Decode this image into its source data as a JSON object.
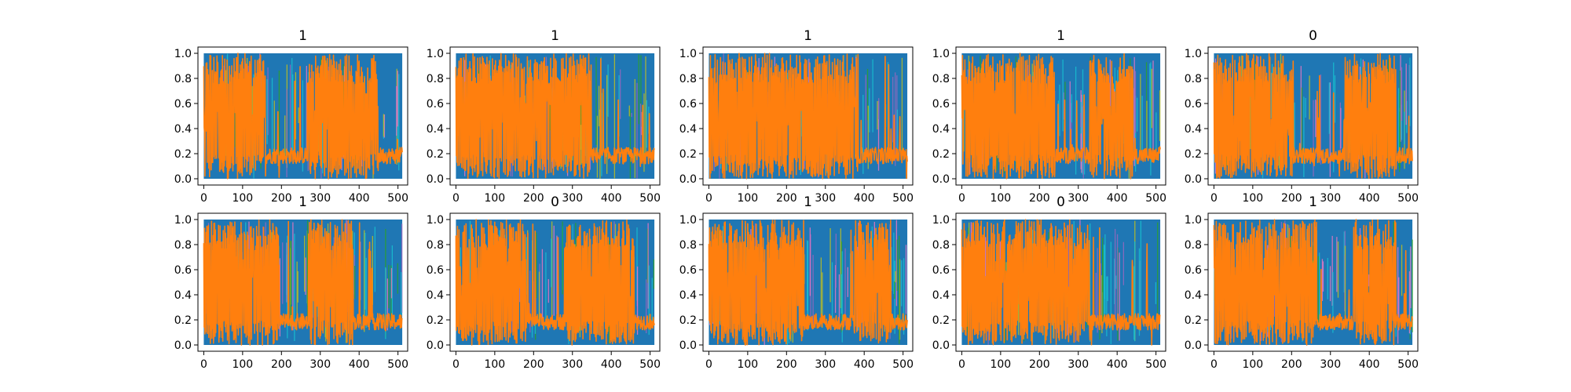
{
  "chart_data": {
    "type": "line",
    "grid": false,
    "layout": {
      "rows": 2,
      "cols": 5
    },
    "colors": {
      "blue": "#1f77b4",
      "orange": "#ff7f0e",
      "cyan": "#17becf",
      "green": "#2ca02c",
      "olive": "#bcbd22",
      "pink": "#e377c2",
      "purple": "#9467bd"
    },
    "panels": [
      {
        "title": "1",
        "xlim": [
          -15,
          525
        ],
        "ylim": [
          -0.05,
          1.05
        ],
        "xticks": [
          0,
          100,
          200,
          300,
          400,
          500
        ],
        "yticks": [
          "0.0",
          "0.2",
          "0.4",
          "0.6",
          "0.8",
          "1.0"
        ],
        "segments": [
          {
            "start": 0,
            "end": 160,
            "regime": "high"
          },
          {
            "start": 160,
            "end": 270,
            "regime": "low"
          },
          {
            "start": 270,
            "end": 450,
            "regime": "high"
          },
          {
            "start": 450,
            "end": 511,
            "regime": "low"
          }
        ]
      },
      {
        "title": "1",
        "xlim": [
          -15,
          525
        ],
        "ylim": [
          -0.05,
          1.05
        ],
        "xticks": [
          0,
          100,
          200,
          300,
          400,
          500
        ],
        "yticks": [
          "0.0",
          "0.2",
          "0.4",
          "0.6",
          "0.8",
          "1.0"
        ],
        "segments": [
          {
            "start": 0,
            "end": 345,
            "regime": "high"
          },
          {
            "start": 345,
            "end": 511,
            "regime": "low"
          }
        ]
      },
      {
        "title": "1",
        "xlim": [
          -15,
          525
        ],
        "ylim": [
          -0.05,
          1.05
        ],
        "xticks": [
          0,
          100,
          200,
          300,
          400,
          500
        ],
        "yticks": [
          "0.0",
          "0.2",
          "0.4",
          "0.6",
          "0.8",
          "1.0"
        ],
        "segments": [
          {
            "start": 0,
            "end": 385,
            "regime": "high"
          },
          {
            "start": 385,
            "end": 511,
            "regime": "low"
          }
        ]
      },
      {
        "title": "1",
        "xlim": [
          -15,
          525
        ],
        "ylim": [
          -0.05,
          1.05
        ],
        "xticks": [
          0,
          100,
          200,
          300,
          400,
          500
        ],
        "yticks": [
          "0.0",
          "0.2",
          "0.4",
          "0.6",
          "0.8",
          "1.0"
        ],
        "segments": [
          {
            "start": 0,
            "end": 240,
            "regime": "high"
          },
          {
            "start": 240,
            "end": 330,
            "regime": "low"
          },
          {
            "start": 330,
            "end": 440,
            "regime": "high"
          },
          {
            "start": 440,
            "end": 511,
            "regime": "low"
          }
        ]
      },
      {
        "title": "0",
        "xlim": [
          -15,
          525
        ],
        "ylim": [
          -0.05,
          1.05
        ],
        "xticks": [
          0,
          100,
          200,
          300,
          400,
          500
        ],
        "yticks": [
          "0.0",
          "0.2",
          "0.4",
          "0.6",
          "0.8",
          "1.0"
        ],
        "segments": [
          {
            "start": 0,
            "end": 205,
            "regime": "high"
          },
          {
            "start": 205,
            "end": 335,
            "regime": "low"
          },
          {
            "start": 335,
            "end": 470,
            "regime": "high"
          },
          {
            "start": 470,
            "end": 511,
            "regime": "low"
          }
        ]
      },
      {
        "title": "1",
        "xlim": [
          -15,
          525
        ],
        "ylim": [
          -0.05,
          1.05
        ],
        "xticks": [
          0,
          100,
          200,
          300,
          400,
          500
        ],
        "yticks": [
          "0.0",
          "0.2",
          "0.4",
          "0.6",
          "0.8",
          "1.0"
        ],
        "segments": [
          {
            "start": 0,
            "end": 195,
            "regime": "high"
          },
          {
            "start": 195,
            "end": 270,
            "regime": "low"
          },
          {
            "start": 270,
            "end": 385,
            "regime": "high"
          },
          {
            "start": 385,
            "end": 511,
            "regime": "low"
          }
        ]
      },
      {
        "title": "0",
        "xlim": [
          -15,
          525
        ],
        "ylim": [
          -0.05,
          1.05
        ],
        "xticks": [
          0,
          100,
          200,
          300,
          400,
          500
        ],
        "yticks": [
          "0.0",
          "0.2",
          "0.4",
          "0.6",
          "0.8",
          "1.0"
        ],
        "segments": [
          {
            "start": 0,
            "end": 180,
            "regime": "high"
          },
          {
            "start": 180,
            "end": 280,
            "regime": "low"
          },
          {
            "start": 280,
            "end": 460,
            "regime": "high"
          },
          {
            "start": 460,
            "end": 511,
            "regime": "low"
          }
        ]
      },
      {
        "title": "1",
        "xlim": [
          -15,
          525
        ],
        "ylim": [
          -0.05,
          1.05
        ],
        "xticks": [
          0,
          100,
          200,
          300,
          400,
          500
        ],
        "yticks": [
          "0.0",
          "0.2",
          "0.4",
          "0.6",
          "0.8",
          "1.0"
        ],
        "segments": [
          {
            "start": 0,
            "end": 245,
            "regime": "high"
          },
          {
            "start": 245,
            "end": 375,
            "regime": "low"
          },
          {
            "start": 375,
            "end": 470,
            "regime": "high"
          },
          {
            "start": 470,
            "end": 511,
            "regime": "low"
          }
        ]
      },
      {
        "title": "0",
        "xlim": [
          -15,
          525
        ],
        "ylim": [
          -0.05,
          1.05
        ],
        "xticks": [
          0,
          100,
          200,
          300,
          400,
          500
        ],
        "yticks": [
          "0.0",
          "0.2",
          "0.4",
          "0.6",
          "0.8",
          "1.0"
        ],
        "segments": [
          {
            "start": 0,
            "end": 330,
            "regime": "high"
          },
          {
            "start": 330,
            "end": 511,
            "regime": "low"
          }
        ]
      },
      {
        "title": "1",
        "xlim": [
          -15,
          525
        ],
        "ylim": [
          -0.05,
          1.05
        ],
        "xticks": [
          0,
          100,
          200,
          300,
          400,
          500
        ],
        "yticks": [
          "0.0",
          "0.2",
          "0.4",
          "0.6",
          "0.8",
          "1.0"
        ],
        "segments": [
          {
            "start": 0,
            "end": 265,
            "regime": "high"
          },
          {
            "start": 265,
            "end": 360,
            "regime": "low"
          },
          {
            "start": 360,
            "end": 470,
            "regime": "high"
          },
          {
            "start": 470,
            "end": 511,
            "regime": "low"
          }
        ]
      }
    ]
  }
}
